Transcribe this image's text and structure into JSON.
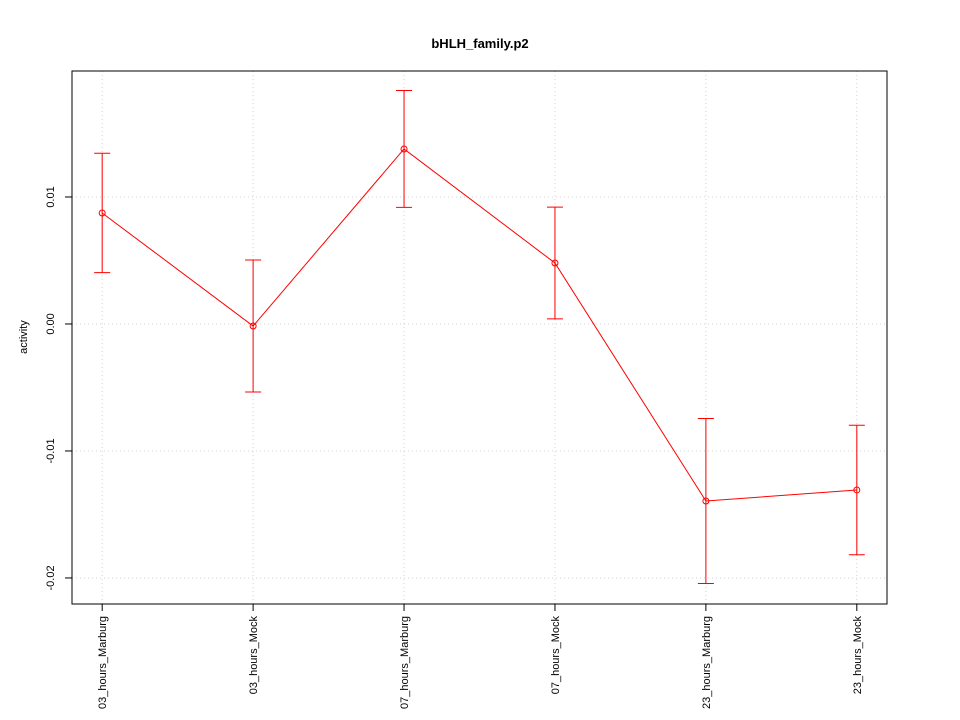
{
  "chart_data": {
    "type": "line",
    "title": "bHLH_family.p2",
    "y_label": "activity",
    "categories": [
      "03_hours_Marburg",
      "03_hours_Mock",
      "07_hours_Marburg",
      "07_hours_Mock",
      "23_hours_Marburg",
      "23_hours_Mock"
    ],
    "values": [
      0.00874,
      -0.00016,
      0.01378,
      0.0048,
      -0.01394,
      -0.01307
    ],
    "errors": [
      0.0047,
      0.0052,
      0.0046,
      0.0044,
      0.0065,
      0.0051
    ],
    "color": "#ff0000",
    "ylim": [
      -0.02205,
      0.01992
    ],
    "yticks": [
      -0.02,
      -0.01,
      {
        "value": 0,
        "label": "0.00"
      },
      0.01
    ],
    "grid": true
  }
}
